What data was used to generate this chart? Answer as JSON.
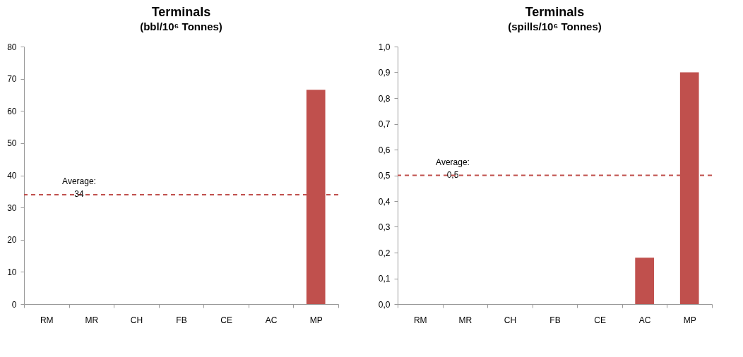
{
  "chart_data": [
    {
      "type": "bar",
      "title": "Terminals",
      "subtitle": "(bbl/10⁶ Tonnes)",
      "categories": [
        "RM",
        "MR",
        "CH",
        "FB",
        "CE",
        "AC",
        "MP"
      ],
      "values": [
        0,
        0,
        0,
        0,
        0,
        0,
        66.6
      ],
      "color": "#c0504d",
      "ylim": [
        0,
        80
      ],
      "yticks": [
        0,
        10,
        20,
        30,
        40,
        50,
        60,
        70,
        80
      ],
      "ref_lines": [
        {
          "axis": "y",
          "value": 34,
          "label": "Average: 34",
          "color": "#c0504d",
          "line_style": "dashed"
        }
      ]
    },
    {
      "type": "bar",
      "title": "Terminals",
      "subtitle": "(spills/10⁶ Tonnes)",
      "categories": [
        "RM",
        "MR",
        "CH",
        "FB",
        "CE",
        "AC",
        "MP"
      ],
      "values": [
        0,
        0,
        0,
        0,
        0,
        0.18,
        0.9
      ],
      "color": "#c0504d",
      "ylim": [
        0,
        1
      ],
      "yticks": [
        {
          "value": 0,
          "label": "0,0"
        },
        {
          "value": 0.1,
          "label": "0,1"
        },
        {
          "value": 0.2,
          "label": "0,2"
        },
        {
          "value": 0.3,
          "label": "0,3"
        },
        {
          "value": 0.4,
          "label": "0,4"
        },
        {
          "value": 0.5,
          "label": "0,5"
        },
        {
          "value": 0.6,
          "label": "0,6"
        },
        {
          "value": 0.7,
          "label": "0,7"
        },
        {
          "value": 0.8,
          "label": "0,8"
        },
        {
          "value": 0.9,
          "label": "0,9"
        },
        {
          "value": 1,
          "label": "1,0"
        }
      ],
      "ref_lines": [
        {
          "axis": "y",
          "value": 0.5,
          "label": "Average: 0,5",
          "color": "#c0504d",
          "line_style": "dashed"
        }
      ]
    }
  ]
}
